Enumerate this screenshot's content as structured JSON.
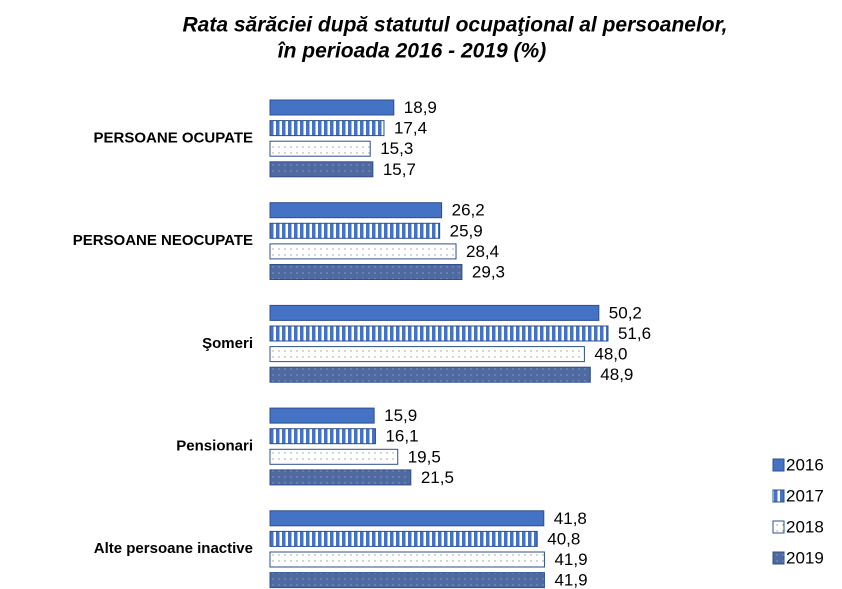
{
  "chart_data": {
    "type": "hbar",
    "title": [
      "Rata sărăciei după statutul ocupaţional al persoanelor,",
      "în perioada 2016 - 2019 (%)"
    ],
    "categories": [
      "PERSOANE OCUPATE",
      "PERSOANE NEOCUPATE",
      "Şomeri",
      "Pensionari",
      "Alte persoane inactive"
    ],
    "series": [
      {
        "name": "2016",
        "color": "#4472c4",
        "pattern": "solid",
        "values": [
          18.9,
          26.2,
          50.2,
          15.9,
          41.8
        ],
        "value_labels": [
          "18,9",
          "26,2",
          "50,2",
          "15,9",
          "41,8"
        ]
      },
      {
        "name": "2017",
        "color": "#4472c4",
        "pattern": "vertical-stripes",
        "values": [
          17.4,
          25.9,
          51.6,
          16.1,
          40.8
        ],
        "value_labels": [
          "17,4",
          "25,9",
          "51,6",
          "16,1",
          "40,8"
        ]
      },
      {
        "name": "2018",
        "color": "#ffffff",
        "pattern": "dots",
        "values": [
          15.3,
          28.4,
          48.0,
          19.5,
          41.9
        ],
        "value_labels": [
          "15,3",
          "28,4",
          "48,0",
          "19,5",
          "41,9"
        ]
      },
      {
        "name": "2019",
        "color": "#4f6aa0",
        "pattern": "dots",
        "values": [
          15.7,
          29.3,
          48.9,
          21.5,
          41.9
        ],
        "value_labels": [
          "15,7",
          "29,3",
          "48,9",
          "21,5",
          "41,9"
        ]
      }
    ],
    "legend": "bottom-right"
  }
}
